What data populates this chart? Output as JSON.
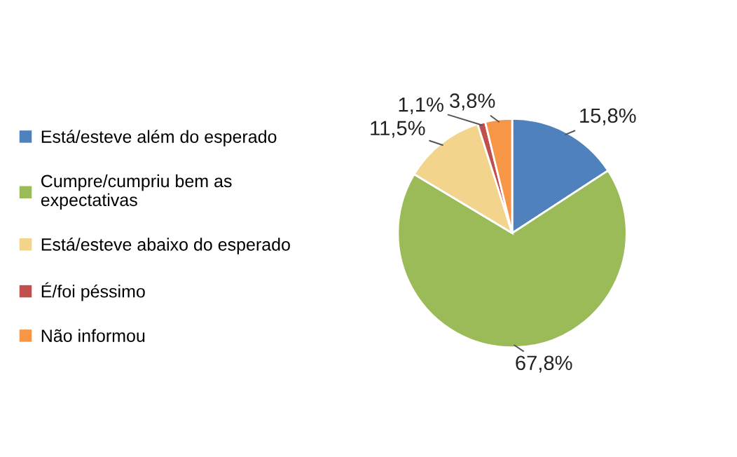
{
  "chart_data": {
    "type": "pie",
    "categories": [
      "Está/esteve além do esperado",
      "Cumpre/cumpriu bem as\nexpectativas",
      "Está/esteve abaixo do esperado",
      "É/foi péssimo",
      "Não informou"
    ],
    "values": [
      15.8,
      67.8,
      11.5,
      1.1,
      3.8
    ],
    "value_labels": [
      "15,8%",
      "67,8%",
      "11,5%",
      "1,1%",
      "3,8%"
    ],
    "colors": [
      "#4f81bd",
      "#9bbb59",
      "#f2d48d",
      "#c0504d",
      "#f79646"
    ],
    "legend": "left"
  }
}
